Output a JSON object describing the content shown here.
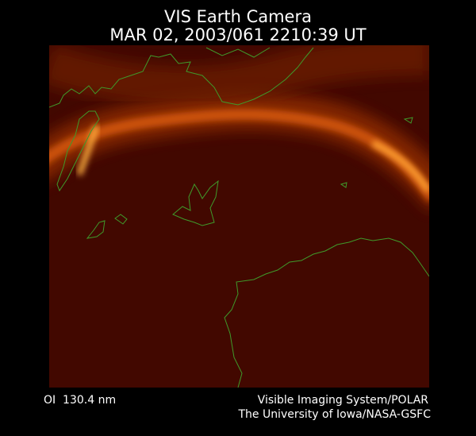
{
  "header": {
    "title": "VIS Earth Camera",
    "timestamp": "MAR 02, 2003/061 2210:39 UT"
  },
  "footer": {
    "filter": "OI  130.4 nm",
    "credit_line_1": "Visible Imaging System/POLAR",
    "credit_line_2": "The University of Iowa/NASA-GSFC"
  }
}
